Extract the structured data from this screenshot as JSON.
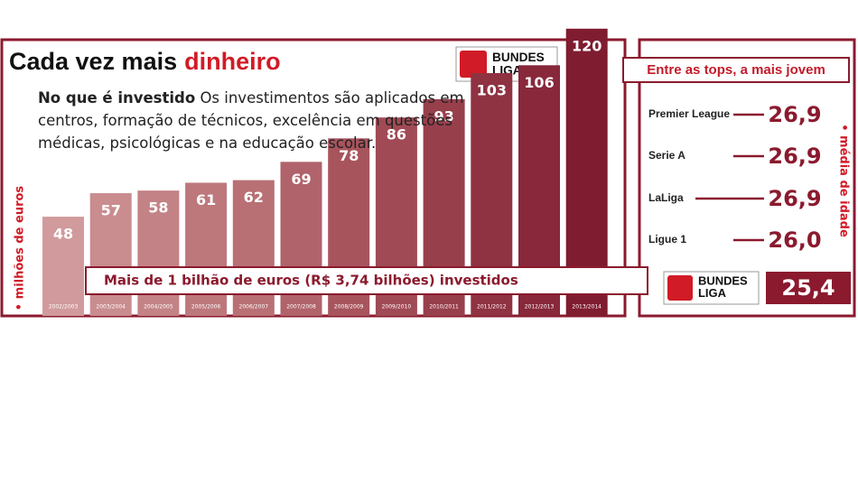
{
  "chart_data": [
    {
      "type": "bar",
      "title": "Cada vez mais",
      "title_highlight": "dinheiro",
      "logo": "BUNDES LIGA",
      "subtitle": "No que é investido",
      "text": "Os investimentos são aplicados em centros, formação de técnicos, excelência em questões médicas, psicológicas e na educação escolar.",
      "y_label": "• milhões de euros",
      "annotation": "Mais de 1 bilhão de euros (R$ 3,74 bilhões) investidos",
      "categories": [
        "2002/2003",
        "2003/2004",
        "2004/2005",
        "2005/2006",
        "2006/2007",
        "2007/2008",
        "2008/2009",
        "2009/2010",
        "2010/2011",
        "2011/2012",
        "2012/2013",
        "2013/2014"
      ],
      "values": [
        48,
        57,
        58,
        61,
        62,
        69,
        78,
        86,
        93,
        103,
        106,
        120
      ],
      "colors": [
        "#d19a9c",
        "#c98c8f",
        "#c38386",
        "#bd787c",
        "#b87074",
        "#b0636a",
        "#a8545d",
        "#a04a55",
        "#983f4c",
        "#8f3242",
        "#88283a",
        "#801c30"
      ],
      "ylim": [
        10,
        122
      ]
    },
    {
      "type": "ranking",
      "title": "Entre as tops, a mais jovem",
      "y_label": "• média de idade",
      "categories": [
        "Premier League",
        "Serie A",
        "LaLiga",
        "Ligue 1",
        "BUNDES LIGA"
      ],
      "values": [
        26.9,
        26.9,
        26.9,
        26.0,
        25.4
      ],
      "value_labels": [
        "26,9",
        "26,9",
        "26,9",
        "26,0",
        "25,4"
      ],
      "color": "#8b1a2e"
    }
  ]
}
